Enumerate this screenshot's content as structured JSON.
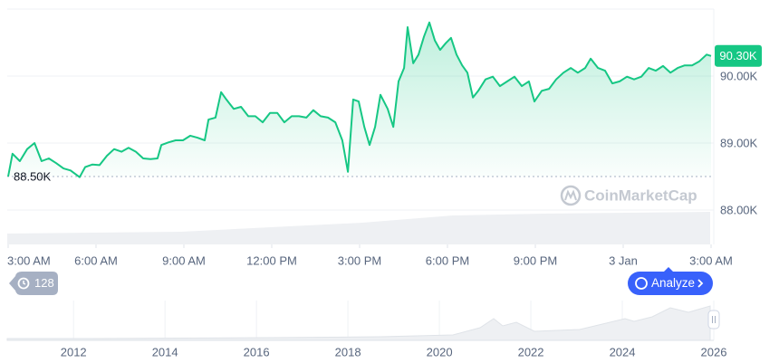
{
  "chart_data": {
    "type": "line",
    "x": [
      0,
      0.15,
      0.4,
      0.65,
      0.9,
      1.14,
      1.39,
      1.64,
      1.89,
      2.13,
      2.44,
      2.63,
      2.88,
      3.12,
      3.37,
      3.62,
      3.87,
      4.11,
      4.36,
      4.61,
      4.86,
      5.1,
      5.23,
      5.47,
      5.72,
      5.97,
      6.22,
      6.46,
      6.71,
      6.84,
      7.08,
      7.27,
      7.45,
      7.7,
      7.95,
      8.2,
      8.44,
      8.69,
      8.94,
      9.19,
      9.43,
      9.68,
      9.93,
      10.18,
      10.42,
      10.67,
      10.92,
      11.17,
      11.41,
      11.6,
      11.78,
      11.97,
      12.16,
      12.34,
      12.53,
      12.71,
      12.96,
      13.15,
      13.33,
      13.52,
      13.64,
      13.83,
      14.01,
      14.2,
      14.38,
      14.57,
      14.75,
      14.94,
      15.12,
      15.31,
      15.5,
      15.68,
      15.87,
      16.05,
      16.3,
      16.55,
      16.79,
      17.04,
      17.29,
      17.54,
      17.78,
      17.97,
      18.22,
      18.47,
      18.71,
      18.96,
      19.21,
      19.45,
      19.7,
      19.89,
      20.14,
      20.38,
      20.63,
      20.88,
      21.13,
      21.37,
      21.62,
      21.87,
      22.11,
      22.36,
      22.61,
      22.86,
      23.1,
      23.35,
      23.6,
      23.85,
      24.0
    ],
    "series": [
      {
        "color": "#16c784",
        "values": [
          88500,
          88840,
          88730,
          88910,
          89000,
          88730,
          88770,
          88700,
          88620,
          88590,
          88490,
          88640,
          88680,
          88670,
          88810,
          88910,
          88870,
          88930,
          88870,
          88770,
          88760,
          88770,
          88970,
          89010,
          89040,
          89040,
          89110,
          89080,
          89040,
          89350,
          89380,
          89760,
          89650,
          89510,
          89540,
          89400,
          89400,
          89310,
          89450,
          89450,
          89310,
          89400,
          89400,
          89380,
          89490,
          89400,
          89380,
          89310,
          89040,
          88570,
          89650,
          89620,
          89240,
          88970,
          89240,
          89720,
          89510,
          89240,
          89920,
          90120,
          90730,
          90190,
          90320,
          90590,
          90800,
          90530,
          90390,
          90490,
          90570,
          90320,
          90160,
          90050,
          89680,
          89780,
          89950,
          89990,
          89850,
          89920,
          89990,
          89850,
          89920,
          89620,
          89780,
          89810,
          89950,
          90050,
          90120,
          90050,
          90120,
          90260,
          90120,
          90080,
          89890,
          89920,
          89990,
          89950,
          89990,
          90120,
          90080,
          90150,
          90050,
          90120,
          90160,
          90160,
          90220,
          90320,
          90300
        ]
      }
    ],
    "xlim": [
      0,
      24
    ],
    "xticks": [
      {
        "value": 0,
        "label": "3:00 AM"
      },
      {
        "value": 3,
        "label": "6:00 AM"
      },
      {
        "value": 6,
        "label": "9:00 AM"
      },
      {
        "value": 9,
        "label": "12:00 PM"
      },
      {
        "value": 12,
        "label": "3:00 PM"
      },
      {
        "value": 15,
        "label": "6:00 PM"
      },
      {
        "value": 18,
        "label": "9:00 PM"
      },
      {
        "value": 21,
        "label": "3 Jan"
      },
      {
        "value": 24,
        "label": "3:00 AM"
      }
    ],
    "ylim": [
      87500,
      91000
    ],
    "yticks": [
      {
        "value": 88000,
        "label": "88.00K"
      },
      {
        "value": 89000,
        "label": "89.00K"
      },
      {
        "value": 90000,
        "label": "90.00K"
      }
    ],
    "grid": true,
    "current_price": {
      "value": 90300,
      "label": "90.30K"
    },
    "baseline": {
      "value": 88500,
      "label": "88.50K"
    },
    "watermark": "CoinMarketCap",
    "badge": "128",
    "button": "Analyze",
    "navigator": {
      "xlim": [
        2010.55,
        2026
      ],
      "xticks": [
        2012,
        2014,
        2016,
        2018,
        2020,
        2022,
        2024,
        2026
      ]
    }
  }
}
